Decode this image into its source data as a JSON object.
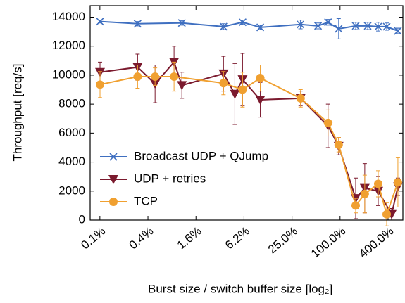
{
  "chart_data": {
    "type": "line",
    "x_label": "Burst size / switch buffer size [log₂]",
    "y_label": "Throughput [req/s]",
    "xscale": "log2",
    "xlim": [
      0.0737,
      613
    ],
    "xticks": [
      {
        "value": 0.09765625,
        "label": "0.1%"
      },
      {
        "value": 0.390625,
        "label": "0.4%"
      },
      {
        "value": 1.5625,
        "label": "1.6%"
      },
      {
        "value": 6.25,
        "label": "6.2%"
      },
      {
        "value": 25,
        "label": "25.0%"
      },
      {
        "value": 100,
        "label": "100.0%"
      },
      {
        "value": 400,
        "label": "400.0%"
      }
    ],
    "ylim": [
      0,
      14800
    ],
    "yticks": [
      0,
      2000,
      4000,
      6000,
      8000,
      10000,
      12000,
      14000
    ],
    "legend": "lower left",
    "series": [
      {
        "name": "Broadcast UDP + QJump",
        "color": "#3f6fc0",
        "marker": "x",
        "x": [
          0.098,
          0.29,
          1.04,
          3.46,
          6.0,
          10.0,
          31.9,
          53,
          70.7,
          96,
          157,
          222,
          301,
          384,
          531
        ],
        "values": [
          13700,
          13550,
          13600,
          13350,
          13650,
          13300,
          13500,
          13400,
          13650,
          13200,
          13400,
          13400,
          13350,
          13350,
          13050
        ],
        "errors": [
          100,
          150,
          150,
          200,
          150,
          150,
          300,
          200,
          200,
          700,
          250,
          250,
          300,
          250,
          200
        ]
      },
      {
        "name": "UDP + retries",
        "color": "#7b1a2e",
        "marker": "triangle-down",
        "x": [
          0.098,
          0.29,
          0.48,
          0.83,
          1.04,
          3.46,
          4.8,
          6.0,
          10.0,
          32,
          70.7,
          96,
          157,
          204,
          301,
          443,
          531
        ],
        "values": [
          10200,
          10550,
          9400,
          10900,
          9300,
          10100,
          8700,
          9700,
          8300,
          8400,
          6500,
          5100,
          1500,
          2200,
          2000,
          400,
          2300
        ],
        "errors": [
          700,
          900,
          1300,
          1100,
          900,
          1200,
          2100,
          1800,
          1200,
          500,
          1500,
          600,
          1400,
          1700,
          1000,
          400,
          600
        ]
      },
      {
        "name": "TCP",
        "color": "#f0a030",
        "marker": "circle",
        "x": [
          0.098,
          0.29,
          0.48,
          0.83,
          3.46,
          6.0,
          10.0,
          32,
          70.7,
          96,
          157,
          204,
          301,
          384,
          531
        ],
        "values": [
          9350,
          9900,
          9900,
          9900,
          9450,
          9000,
          9800,
          8400,
          6700,
          5200,
          1000,
          1800,
          2500,
          400,
          2600
        ],
        "errors": [
          900,
          800,
          600,
          1000,
          800,
          1200,
          900,
          600,
          900,
          500,
          500,
          1300,
          900,
          800,
          1700
        ]
      }
    ]
  }
}
